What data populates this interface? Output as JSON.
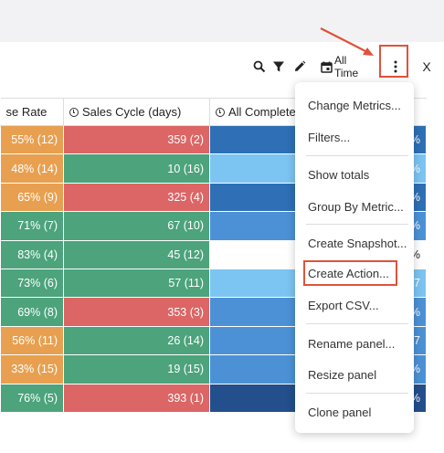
{
  "toolbar": {
    "icons": [
      "search-icon",
      "filter-icon",
      "pencil-icon",
      "calendar-icon",
      "more-vertical-icon"
    ],
    "time_range": "All Time",
    "close": "X"
  },
  "table": {
    "headers": [
      "se Rate",
      "Sales Cycle (days)",
      "All Completed"
    ],
    "rows": [
      {
        "rate": "55% (12)",
        "cycle": "359 (2)",
        "col3": "",
        "tail": "%"
      },
      {
        "rate": "48% (14)",
        "cycle": "10 (16)",
        "col3": "",
        "tail": "%"
      },
      {
        "rate": "65% (9)",
        "cycle": "325 (4)",
        "col3": "",
        "tail": "%"
      },
      {
        "rate": "71% (7)",
        "cycle": "67 (10)",
        "col3": "",
        "tail": "%"
      },
      {
        "rate": "83% (4)",
        "cycle": "45 (12)",
        "col3": "",
        "tail": "0%"
      },
      {
        "rate": "73% (6)",
        "cycle": "57 (11)",
        "col3": "",
        "tail": "7"
      },
      {
        "rate": "69% (8)",
        "cycle": "353 (3)",
        "col3": "",
        "tail": "%"
      },
      {
        "rate": "56% (11)",
        "cycle": "26 (14)",
        "col3": "",
        "tail": "7"
      },
      {
        "rate": "33% (15)",
        "cycle": "19 (15)",
        "col3": "",
        "tail": "%"
      },
      {
        "rate": "76% (5)",
        "cycle": "393 (1)",
        "col3": "",
        "tail": "%"
      }
    ],
    "colors": {
      "orange": "#e8a050",
      "green": "#4ca37c",
      "red": "#dc6565",
      "blue_dark": "#2e6fb5",
      "blue_mid": "#4c91d6",
      "blue_light": "#7cc4f2",
      "navy": "#234f8c",
      "white": "#ffffff"
    }
  },
  "menu": {
    "items": [
      "Change Metrics...",
      "Filters...",
      "Show totals",
      "Group By Metric...",
      "Create Snapshot...",
      "Create Action...",
      "Export CSV...",
      "Rename panel...",
      "Resize panel",
      "Clone panel"
    ],
    "highlighted": "Create Action..."
  },
  "annotation": {
    "accent_color": "#e0523a"
  }
}
